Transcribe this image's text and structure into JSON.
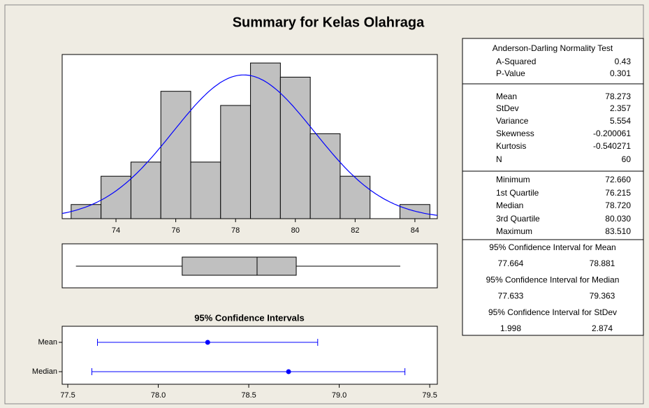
{
  "title": "Summary for Kelas Olahraga",
  "chart_data": [
    {
      "type": "histogram",
      "bins": [
        72.5,
        73.5,
        74.5,
        75.5,
        76.5,
        77.5,
        78.5,
        79.5,
        80.5,
        81.5,
        82.5,
        83.5,
        84.5
      ],
      "values": [
        1,
        3,
        4,
        9,
        4,
        8,
        11,
        10,
        6,
        3,
        0,
        1
      ],
      "color": "#c0c0c0",
      "curve_color": "#0000ff",
      "xlim": [
        72.2,
        84.75
      ],
      "ylim": [
        0,
        11.6
      ],
      "xticks": [
        74,
        76,
        78,
        80,
        82,
        84
      ]
    },
    {
      "type": "box",
      "color": "#c0c0c0",
      "xlim": [
        72.2,
        84.75
      ]
    },
    {
      "type": "interval",
      "title": "95% Confidence Intervals",
      "categories": [
        "Mean",
        "Median"
      ],
      "color": "#0000ff",
      "xlim": [
        77.469,
        79.542
      ],
      "xticks": [
        77.5,
        {
          "value": 78,
          "label": "78.0"
        },
        78.5,
        {
          "value": 79,
          "label": "79.0"
        },
        79.5
      ]
    }
  ],
  "stats": {
    "normality": {
      "title": "Anderson-Darling Normality Test",
      "rows": [
        {
          "name": "A-Squared",
          "value": 0.43
        },
        {
          "name": "P-Value",
          "value": 0.301
        }
      ]
    },
    "moments": {
      "rows": [
        {
          "name": "Mean",
          "value": 78.273
        },
        {
          "name": "StDev",
          "value": 2.357
        },
        {
          "name": "Variance",
          "value": 5.554
        },
        {
          "name": "Skewness",
          "value": -0.200061
        },
        {
          "name": "Kurtosis",
          "value": -0.540271
        },
        {
          "name": "N",
          "value": 60
        }
      ]
    },
    "quantiles": {
      "rows": [
        {
          "name": "Minimum",
          "value": 72.66,
          "value_label": "72.660"
        },
        {
          "name": "1st Quartile",
          "value": 76.215
        },
        {
          "name": "Median",
          "value": 78.72,
          "value_label": "78.720"
        },
        {
          "name": "3rd Quartile",
          "value": 80.03,
          "value_label": "80.030"
        },
        {
          "name": "Maximum",
          "value": 83.51,
          "value_label": "83.510"
        }
      ]
    },
    "intervals": [
      {
        "title": "95% Confidence Interval for Mean",
        "values": [
          77.664,
          78.881
        ]
      },
      {
        "title": "95% Confidence Interval for Median",
        "values": [
          77.633,
          79.363
        ]
      },
      {
        "title": "95% Confidence Interval for StDev",
        "values": [
          1.998,
          2.874
        ]
      }
    ]
  }
}
